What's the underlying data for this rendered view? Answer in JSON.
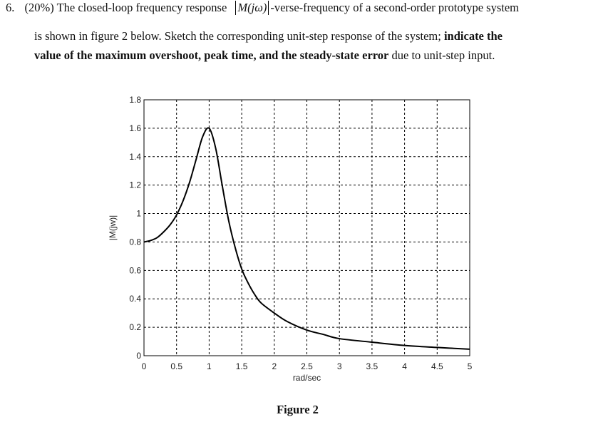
{
  "question": {
    "number": "6.",
    "points": "(20%)",
    "line1_pre": "The closed-loop frequency response",
    "math_symbol": "M(jω)",
    "line1_post": "-verse-frequency of a second-order prototype system",
    "line2_normal": "is shown in figure 2 below. Sketch the corresponding unit-step response of the system;",
    "line2_bold": "indicate the",
    "line3_bold": "value of the maximum overshoot, peak time, and the steady-state error",
    "line3_normal": "due to unit-step input."
  },
  "figure": {
    "caption": "Figure 2"
  },
  "chart_data": {
    "type": "line",
    "title": "",
    "xlabel": "rad/sec",
    "ylabel": "|M(jw)|",
    "xlim": [
      0,
      5
    ],
    "ylim": [
      0,
      1.8
    ],
    "grid": true,
    "grid_style": "dashed",
    "legend": null,
    "x_ticks": [
      "0",
      "0.5",
      "1",
      "1.5",
      "2",
      "2.5",
      "3",
      "3.5",
      "4",
      "4.5",
      "5"
    ],
    "y_ticks": [
      "0",
      "0.2",
      "0.4",
      "0.6",
      "0.8",
      "1",
      "1.2",
      "1.4",
      "1.6",
      "1.8"
    ],
    "series": [
      {
        "name": "|M(jw)|",
        "color": "#000000",
        "x": [
          0,
          0.1,
          0.2,
          0.3,
          0.4,
          0.5,
          0.6,
          0.7,
          0.8,
          0.9,
          1.0,
          1.1,
          1.2,
          1.3,
          1.4,
          1.5,
          1.6,
          1.7,
          1.8,
          2.0,
          2.2,
          2.5,
          2.75,
          3.0,
          3.5,
          4.0,
          4.5,
          5.0
        ],
        "values": [
          0.8,
          0.81,
          0.83,
          0.87,
          0.92,
          0.99,
          1.09,
          1.22,
          1.38,
          1.54,
          1.6,
          1.46,
          1.2,
          0.95,
          0.76,
          0.61,
          0.51,
          0.43,
          0.37,
          0.3,
          0.24,
          0.18,
          0.15,
          0.12,
          0.095,
          0.072,
          0.058,
          0.046
        ]
      }
    ],
    "annotations": {
      "dc_gain": 0.8,
      "resonant_peak": 1.6,
      "resonant_frequency": 1.0
    }
  }
}
